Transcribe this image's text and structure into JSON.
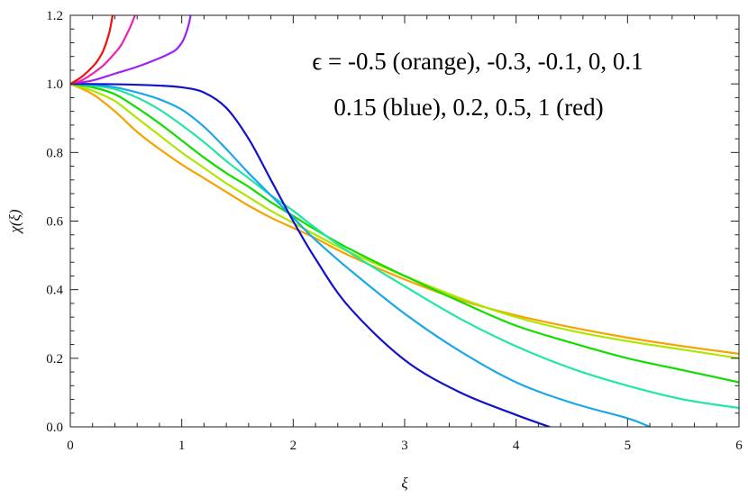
{
  "chart_data": {
    "type": "line",
    "title": "",
    "xlabel": "ξ",
    "ylabel": "χ(ξ)",
    "xlim": [
      0,
      6
    ],
    "ylim": [
      0,
      1.2
    ],
    "x_ticks": [
      0,
      1,
      2,
      3,
      4,
      5,
      6
    ],
    "y_ticks": [
      0.0,
      0.2,
      0.4,
      0.6,
      0.8,
      1.0,
      1.2
    ],
    "x_tick_labels": [
      "0",
      "1",
      "2",
      "3",
      "4",
      "5",
      "6"
    ],
    "y_tick_labels": [
      "0.0",
      "0.2",
      "0.4",
      "0.6",
      "0.8",
      "1.0",
      "1.2"
    ],
    "grid": false,
    "legend": "none",
    "annotations": [
      "ϵ = -0.5 (orange), -0.3, -0.1, 0, 0.1",
      "0.15 (blue),  0.2,  0.5,  1 (red)"
    ],
    "series": [
      {
        "color": "#f5a300",
        "points": [
          [
            0,
            1.0
          ],
          [
            0.2,
            0.97
          ],
          [
            0.4,
            0.92
          ],
          [
            0.6,
            0.86
          ],
          [
            0.8,
            0.81
          ],
          [
            1.0,
            0.765
          ],
          [
            1.2,
            0.725
          ],
          [
            1.4,
            0.685
          ],
          [
            1.6,
            0.645
          ],
          [
            1.8,
            0.61
          ],
          [
            2.0,
            0.58
          ],
          [
            2.2,
            0.55
          ],
          [
            2.5,
            0.5
          ],
          [
            3.0,
            0.43
          ],
          [
            3.5,
            0.37
          ],
          [
            4.0,
            0.325
          ],
          [
            4.5,
            0.29
          ],
          [
            5.0,
            0.26
          ],
          [
            5.5,
            0.235
          ],
          [
            6.0,
            0.213
          ]
        ]
      },
      {
        "color": "#aee600",
        "points": [
          [
            0,
            1.0
          ],
          [
            0.2,
            0.98
          ],
          [
            0.4,
            0.95
          ],
          [
            0.6,
            0.9
          ],
          [
            0.8,
            0.85
          ],
          [
            1.0,
            0.8
          ],
          [
            1.2,
            0.755
          ],
          [
            1.4,
            0.71
          ],
          [
            1.6,
            0.67
          ],
          [
            1.8,
            0.63
          ],
          [
            2.0,
            0.595
          ],
          [
            2.2,
            0.56
          ],
          [
            2.5,
            0.51
          ],
          [
            3.0,
            0.44
          ],
          [
            3.5,
            0.375
          ],
          [
            4.0,
            0.32
          ],
          [
            4.5,
            0.28
          ],
          [
            5.0,
            0.25
          ],
          [
            5.5,
            0.225
          ],
          [
            6.0,
            0.2
          ]
        ]
      },
      {
        "color": "#11dd00",
        "points": [
          [
            0,
            1.0
          ],
          [
            0.2,
            0.99
          ],
          [
            0.4,
            0.97
          ],
          [
            0.6,
            0.93
          ],
          [
            0.8,
            0.885
          ],
          [
            1.0,
            0.835
          ],
          [
            1.2,
            0.785
          ],
          [
            1.4,
            0.74
          ],
          [
            1.6,
            0.7
          ],
          [
            1.8,
            0.655
          ],
          [
            2.0,
            0.615
          ],
          [
            2.2,
            0.575
          ],
          [
            2.5,
            0.52
          ],
          [
            3.0,
            0.44
          ],
          [
            3.5,
            0.365
          ],
          [
            4.0,
            0.295
          ],
          [
            4.5,
            0.245
          ],
          [
            5.0,
            0.2
          ],
          [
            5.5,
            0.165
          ],
          [
            6.0,
            0.13
          ]
        ]
      },
      {
        "color": "#22e6a8",
        "points": [
          [
            0,
            1.0
          ],
          [
            0.2,
            0.995
          ],
          [
            0.4,
            0.985
          ],
          [
            0.6,
            0.96
          ],
          [
            0.8,
            0.925
          ],
          [
            1.0,
            0.88
          ],
          [
            1.2,
            0.83
          ],
          [
            1.4,
            0.775
          ],
          [
            1.6,
            0.725
          ],
          [
            1.8,
            0.675
          ],
          [
            2.0,
            0.63
          ],
          [
            2.2,
            0.58
          ],
          [
            2.5,
            0.51
          ],
          [
            3.0,
            0.41
          ],
          [
            3.5,
            0.315
          ],
          [
            4.0,
            0.235
          ],
          [
            4.5,
            0.17
          ],
          [
            5.0,
            0.12
          ],
          [
            5.5,
            0.08
          ],
          [
            6.0,
            0.055
          ]
        ]
      },
      {
        "color": "#1ca8e8",
        "points": [
          [
            0,
            1.0
          ],
          [
            0.2,
            0.998
          ],
          [
            0.4,
            0.99
          ],
          [
            0.6,
            0.975
          ],
          [
            0.8,
            0.955
          ],
          [
            1.0,
            0.925
          ],
          [
            1.2,
            0.875
          ],
          [
            1.4,
            0.81
          ],
          [
            1.6,
            0.74
          ],
          [
            1.8,
            0.675
          ],
          [
            2.0,
            0.61
          ],
          [
            2.2,
            0.545
          ],
          [
            2.5,
            0.46
          ],
          [
            3.0,
            0.33
          ],
          [
            3.5,
            0.22
          ],
          [
            4.0,
            0.13
          ],
          [
            4.5,
            0.07
          ],
          [
            5.0,
            0.025
          ],
          [
            5.2,
            0.0
          ]
        ]
      },
      {
        "color": "#1212c8",
        "points": [
          [
            0,
            1.0
          ],
          [
            0.4,
            0.999
          ],
          [
            0.8,
            0.995
          ],
          [
            1.0,
            0.99
          ],
          [
            1.2,
            0.975
          ],
          [
            1.4,
            0.93
          ],
          [
            1.6,
            0.84
          ],
          [
            1.8,
            0.72
          ],
          [
            2.0,
            0.6
          ],
          [
            2.2,
            0.49
          ],
          [
            2.5,
            0.35
          ],
          [
            3.0,
            0.195
          ],
          [
            3.5,
            0.1
          ],
          [
            4.0,
            0.035
          ],
          [
            4.3,
            0.0
          ]
        ]
      },
      {
        "color": "#a020f0",
        "points": [
          [
            0,
            1.0
          ],
          [
            0.2,
            1.01
          ],
          [
            0.4,
            1.03
          ],
          [
            0.6,
            1.05
          ],
          [
            0.8,
            1.075
          ],
          [
            0.9,
            1.09
          ],
          [
            0.95,
            1.1
          ],
          [
            1.0,
            1.12
          ],
          [
            1.03,
            1.14
          ],
          [
            1.06,
            1.17
          ],
          [
            1.08,
            1.2
          ]
        ]
      },
      {
        "color": "#ee22b0",
        "points": [
          [
            0,
            1.0
          ],
          [
            0.1,
            1.01
          ],
          [
            0.2,
            1.03
          ],
          [
            0.3,
            1.055
          ],
          [
            0.4,
            1.09
          ],
          [
            0.45,
            1.11
          ],
          [
            0.5,
            1.14
          ],
          [
            0.55,
            1.175
          ],
          [
            0.58,
            1.2
          ]
        ]
      },
      {
        "color": "#ee1111",
        "points": [
          [
            0,
            1.0
          ],
          [
            0.1,
            1.02
          ],
          [
            0.2,
            1.05
          ],
          [
            0.25,
            1.07
          ],
          [
            0.3,
            1.1
          ],
          [
            0.35,
            1.15
          ],
          [
            0.38,
            1.2
          ]
        ]
      }
    ]
  }
}
